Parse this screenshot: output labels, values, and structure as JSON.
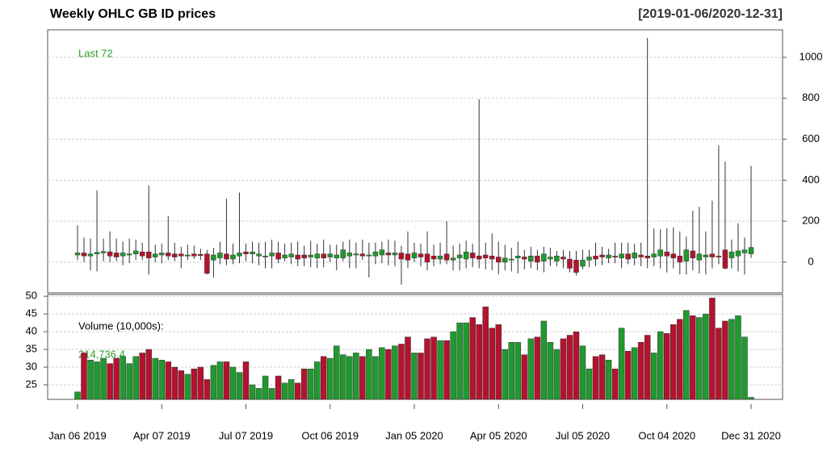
{
  "chart_data": [
    {
      "type": "candlestick",
      "title": "Weekly OHLC GB ID prices",
      "subtitle": "[2019-01-06/2020-12-31]",
      "annotation": "Last 72",
      "categories": [
        "Jan 06 2019",
        null,
        null,
        null,
        null,
        null,
        null,
        null,
        null,
        null,
        null,
        null,
        null,
        "Apr 07 2019",
        null,
        null,
        null,
        null,
        null,
        null,
        null,
        null,
        null,
        null,
        null,
        null,
        "Jul 07 2019",
        null,
        null,
        null,
        null,
        null,
        null,
        null,
        null,
        null,
        null,
        null,
        null,
        "Oct 06 2019",
        null,
        null,
        null,
        null,
        null,
        null,
        null,
        null,
        null,
        null,
        null,
        null,
        "Jan 05 2020",
        null,
        null,
        null,
        null,
        null,
        null,
        null,
        null,
        null,
        null,
        null,
        null,
        "Apr 05 2020",
        null,
        null,
        null,
        null,
        null,
        null,
        null,
        null,
        null,
        null,
        null,
        null,
        "Jul 05 2020",
        null,
        null,
        null,
        null,
        null,
        null,
        null,
        null,
        null,
        null,
        null,
        null,
        "Oct 04 2020",
        null,
        null,
        null,
        null,
        null,
        null,
        null,
        null,
        null,
        null,
        null,
        null,
        "Dec 31 2020"
      ],
      "open": [
        35,
        45,
        30,
        40,
        45,
        50,
        45,
        30,
        35,
        40,
        50,
        50,
        25,
        35,
        45,
        40,
        40,
        30,
        40,
        38,
        40,
        10,
        20,
        40,
        15,
        30,
        50,
        40,
        30,
        25,
        30,
        45,
        20,
        25,
        35,
        35,
        25,
        20,
        40,
        25,
        20,
        20,
        30,
        35,
        40,
        30,
        30,
        35,
        45,
        35,
        45,
        40,
        20,
        40,
        40,
        30,
        15,
        40,
        10,
        20,
        15,
        45,
        30,
        35,
        30,
        25,
        0,
        10,
        20,
        25,
        5,
        30,
        5,
        15,
        5,
        25,
        15,
        10,
        -20,
        10,
        30,
        35,
        20,
        30,
        20,
        40,
        20,
        35,
        30,
        25,
        30,
        50,
        40,
        30,
        5,
        55,
        10,
        25,
        40,
        30,
        60,
        20,
        30,
        45,
        40
      ],
      "high": [
        180,
        120,
        115,
        350,
        115,
        150,
        115,
        100,
        115,
        110,
        95,
        375,
        85,
        90,
        225,
        95,
        75,
        85,
        80,
        65,
        60,
        70,
        100,
        310,
        90,
        340,
        90,
        100,
        95,
        100,
        110,
        100,
        90,
        95,
        100,
        80,
        105,
        90,
        110,
        85,
        85,
        100,
        110,
        95,
        110,
        95,
        95,
        100,
        110,
        105,
        80,
        150,
        95,
        90,
        150,
        85,
        95,
        200,
        80,
        90,
        105,
        90,
        795,
        95,
        140,
        100,
        85,
        70,
        100,
        60,
        75,
        60,
        75,
        70,
        55,
        60,
        55,
        55,
        60,
        60,
        95,
        75,
        65,
        95,
        95,
        95,
        90,
        95,
        1095,
        165,
        160,
        165,
        170,
        150,
        125,
        250,
        270,
        150,
        300,
        570,
        490,
        110,
        190,
        120,
        470
      ],
      "low": [
        10,
        0,
        -40,
        -45,
        5,
        0,
        5,
        -15,
        -5,
        10,
        10,
        -60,
        0,
        -5,
        10,
        5,
        -30,
        10,
        15,
        10,
        -60,
        -75,
        -10,
        -15,
        -10,
        -5,
        5,
        -5,
        -15,
        -30,
        -30,
        -5,
        5,
        -10,
        -20,
        -20,
        -25,
        -30,
        -25,
        0,
        -40,
        5,
        -30,
        -30,
        10,
        -75,
        -10,
        -5,
        -15,
        -20,
        -110,
        -30,
        0,
        -20,
        -40,
        -20,
        -10,
        -10,
        -40,
        -40,
        -30,
        -25,
        -30,
        -35,
        -40,
        -60,
        -40,
        -45,
        -55,
        -35,
        -30,
        -40,
        -50,
        -20,
        -20,
        -30,
        -50,
        -65,
        -35,
        -25,
        -20,
        -15,
        -5,
        -5,
        -30,
        -10,
        -15,
        -20,
        -30,
        -20,
        -30,
        -50,
        -30,
        -60,
        -60,
        -40,
        -55,
        -60,
        -30,
        -10,
        -35,
        -30,
        -45,
        -60,
        20
      ],
      "close": [
        45,
        30,
        40,
        48,
        52,
        30,
        25,
        45,
        40,
        55,
        30,
        20,
        40,
        45,
        30,
        25,
        30,
        35,
        30,
        32,
        -55,
        35,
        45,
        15,
        35,
        45,
        40,
        50,
        40,
        30,
        45,
        15,
        35,
        40,
        15,
        20,
        35,
        40,
        20,
        40,
        35,
        60,
        45,
        40,
        30,
        35,
        50,
        60,
        35,
        45,
        15,
        10,
        45,
        25,
        0,
        15,
        30,
        10,
        20,
        35,
        50,
        20,
        15,
        20,
        15,
        0,
        20,
        15,
        30,
        15,
        30,
        0,
        40,
        25,
        30,
        15,
        -30,
        -50,
        10,
        25,
        15,
        25,
        35,
        25,
        40,
        15,
        45,
        25,
        20,
        40,
        60,
        30,
        20,
        0,
        60,
        20,
        40,
        35,
        25,
        25,
        -30,
        50,
        55,
        60,
        72
      ],
      "ylim": [
        -150,
        1134
      ],
      "yticks": [
        0,
        200,
        400,
        600,
        800,
        1000
      ],
      "grid": true,
      "up_color": "#1f9a2e",
      "down_color": "#b5122e"
    },
    {
      "type": "bar",
      "label": "Volume (10,000s):",
      "annotation": "214,736.4",
      "values": [
        23,
        34,
        32,
        31.5,
        32.5,
        31,
        32.5,
        33,
        31,
        33,
        34,
        35,
        32.5,
        32,
        31.5,
        30,
        29,
        28,
        29.5,
        30,
        26.5,
        30.5,
        31.5,
        31.5,
        30,
        28.5,
        31.5,
        25,
        24,
        27.5,
        24,
        27.5,
        25.5,
        26.5,
        25.5,
        29.5,
        29.5,
        31.5,
        33,
        32.5,
        36,
        33.5,
        33,
        34,
        33,
        35,
        33,
        35.5,
        35,
        36,
        36.5,
        38.5,
        34,
        34,
        38,
        38.5,
        37.5,
        37.5,
        40,
        42.5,
        42.5,
        44,
        42,
        47,
        41,
        42,
        35,
        37,
        37,
        33.5,
        38,
        38.5,
        43,
        37,
        35,
        38,
        39,
        40,
        36,
        29.5,
        33,
        33.5,
        32,
        29.5,
        41,
        34.5,
        35.5,
        37,
        39,
        34,
        40,
        39.5,
        42,
        43.5,
        46,
        44.5,
        44,
        45,
        49.5,
        41,
        43,
        43.5,
        44.5,
        38.5,
        21.47364
      ],
      "ylim": [
        20.9,
        50.5
      ],
      "yticks": [
        25,
        30,
        35,
        40,
        45,
        50
      ],
      "grid": true
    }
  ]
}
